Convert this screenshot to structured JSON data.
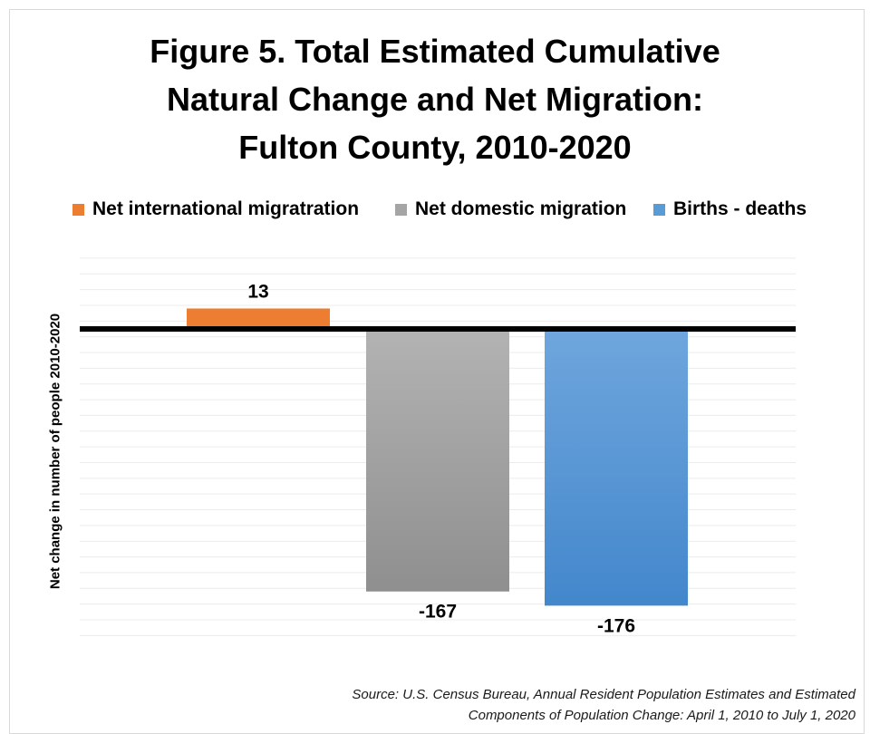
{
  "title_lines": [
    "Figure 5. Total Estimated Cumulative",
    "Natural Change and Net Migration:",
    "Fulton County, 2010-2020"
  ],
  "source_lines": [
    "Source: U.S. Census Bureau, Annual Resident Population Estimates and Estimated",
    "Components of Population Change: April 1, 2010 to July 1, 2020"
  ],
  "colors": {
    "international": "#ed7d31",
    "domestic_top": "#b3b3b3",
    "domestic_bottom": "#8f8f8f",
    "births_top": "#6fa6dd",
    "births_bottom": "#4387cc"
  },
  "chart_data": {
    "type": "bar",
    "title": "Figure 5. Total Estimated Cumulative Natural Change and Net Migration: Fulton County, 2010-2020",
    "xlabel": "",
    "ylabel": "Net change in number of people 2010-2020",
    "legend_position": "top",
    "grid": true,
    "ylim": [
      -195,
      50
    ],
    "series": [
      {
        "name": "Net international migratration",
        "values": [
          13
        ],
        "label": "13"
      },
      {
        "name": "Net domestic migration",
        "values": [
          -167
        ],
        "label": "-167"
      },
      {
        "name": "Births  - deaths",
        "values": [
          -176
        ],
        "label": "-176"
      }
    ]
  }
}
